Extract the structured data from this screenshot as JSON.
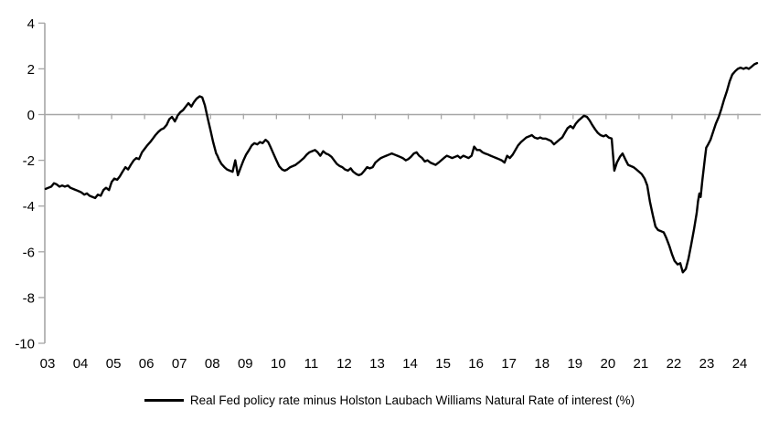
{
  "legend": {
    "label": "Real Fed policy rate minus Holston Laubach Williams Natural Rate of interest (%)"
  },
  "chart_data": {
    "type": "line",
    "title": "",
    "xlabel": "",
    "ylabel": "",
    "legend_position": "bottom",
    "grid": "zero-line-only",
    "ylim": [
      -10,
      4
    ],
    "xlim": [
      2003.0,
      2024.8
    ],
    "y_ticks": [
      4,
      2,
      0,
      -2,
      -4,
      -6,
      -8,
      -10
    ],
    "x_tick_years": [
      2003,
      2004,
      2005,
      2006,
      2007,
      2008,
      2009,
      2010,
      2011,
      2012,
      2013,
      2014,
      2015,
      2016,
      2017,
      2018,
      2019,
      2020,
      2021,
      2022,
      2023,
      2024
    ],
    "x_tick_labels": [
      "03",
      "04",
      "05",
      "06",
      "07",
      "08",
      "09",
      "10",
      "11",
      "12",
      "13",
      "14",
      "15",
      "16",
      "17",
      "18",
      "19",
      "20",
      "21",
      "22",
      "23",
      "24"
    ],
    "colors": {
      "line": "#000000",
      "axis": "#a6a6a6",
      "text": "#000000",
      "background": "#ffffff"
    },
    "series": [
      {
        "name": "Real Fed policy rate minus Holston Laubach Williams Natural Rate of interest (%)",
        "points": [
          [
            2003.0,
            -3.25
          ],
          [
            2003.08,
            -3.2
          ],
          [
            2003.17,
            -3.15
          ],
          [
            2003.25,
            -3.0
          ],
          [
            2003.33,
            -3.05
          ],
          [
            2003.42,
            -3.15
          ],
          [
            2003.5,
            -3.1
          ],
          [
            2003.58,
            -3.15
          ],
          [
            2003.67,
            -3.1
          ],
          [
            2003.75,
            -3.2
          ],
          [
            2003.83,
            -3.25
          ],
          [
            2003.92,
            -3.3
          ],
          [
            2004.0,
            -3.35
          ],
          [
            2004.08,
            -3.4
          ],
          [
            2004.17,
            -3.5
          ],
          [
            2004.25,
            -3.45
          ],
          [
            2004.33,
            -3.55
          ],
          [
            2004.42,
            -3.6
          ],
          [
            2004.5,
            -3.65
          ],
          [
            2004.58,
            -3.5
          ],
          [
            2004.67,
            -3.55
          ],
          [
            2004.75,
            -3.3
          ],
          [
            2004.83,
            -3.2
          ],
          [
            2004.92,
            -3.3
          ],
          [
            2005.0,
            -2.95
          ],
          [
            2005.08,
            -2.8
          ],
          [
            2005.17,
            -2.85
          ],
          [
            2005.25,
            -2.7
          ],
          [
            2005.33,
            -2.5
          ],
          [
            2005.42,
            -2.3
          ],
          [
            2005.5,
            -2.4
          ],
          [
            2005.58,
            -2.2
          ],
          [
            2005.67,
            -2.0
          ],
          [
            2005.75,
            -1.9
          ],
          [
            2005.83,
            -1.95
          ],
          [
            2005.92,
            -1.65
          ],
          [
            2006.0,
            -1.5
          ],
          [
            2006.08,
            -1.35
          ],
          [
            2006.17,
            -1.2
          ],
          [
            2006.25,
            -1.05
          ],
          [
            2006.33,
            -0.9
          ],
          [
            2006.42,
            -0.75
          ],
          [
            2006.5,
            -0.65
          ],
          [
            2006.58,
            -0.6
          ],
          [
            2006.67,
            -0.45
          ],
          [
            2006.75,
            -0.2
          ],
          [
            2006.83,
            -0.1
          ],
          [
            2006.92,
            -0.3
          ],
          [
            2007.0,
            -0.05
          ],
          [
            2007.08,
            0.1
          ],
          [
            2007.17,
            0.2
          ],
          [
            2007.25,
            0.35
          ],
          [
            2007.33,
            0.5
          ],
          [
            2007.42,
            0.35
          ],
          [
            2007.5,
            0.55
          ],
          [
            2007.58,
            0.7
          ],
          [
            2007.67,
            0.8
          ],
          [
            2007.75,
            0.75
          ],
          [
            2007.83,
            0.4
          ],
          [
            2007.92,
            -0.2
          ],
          [
            2008.0,
            -0.7
          ],
          [
            2008.08,
            -1.2
          ],
          [
            2008.17,
            -1.7
          ],
          [
            2008.21,
            -1.8
          ],
          [
            2008.25,
            -1.95
          ],
          [
            2008.33,
            -2.15
          ],
          [
            2008.42,
            -2.3
          ],
          [
            2008.5,
            -2.4
          ],
          [
            2008.58,
            -2.45
          ],
          [
            2008.67,
            -2.5
          ],
          [
            2008.75,
            -2.0
          ],
          [
            2008.83,
            -2.65
          ],
          [
            2008.92,
            -2.3
          ],
          [
            2009.0,
            -2.0
          ],
          [
            2009.08,
            -1.75
          ],
          [
            2009.17,
            -1.55
          ],
          [
            2009.25,
            -1.35
          ],
          [
            2009.33,
            -1.25
          ],
          [
            2009.42,
            -1.3
          ],
          [
            2009.5,
            -1.2
          ],
          [
            2009.58,
            -1.25
          ],
          [
            2009.67,
            -1.1
          ],
          [
            2009.75,
            -1.2
          ],
          [
            2009.83,
            -1.45
          ],
          [
            2009.92,
            -1.75
          ],
          [
            2010.0,
            -2.0
          ],
          [
            2010.08,
            -2.25
          ],
          [
            2010.17,
            -2.4
          ],
          [
            2010.25,
            -2.45
          ],
          [
            2010.33,
            -2.4
          ],
          [
            2010.42,
            -2.3
          ],
          [
            2010.5,
            -2.25
          ],
          [
            2010.58,
            -2.2
          ],
          [
            2010.67,
            -2.1
          ],
          [
            2010.75,
            -2.0
          ],
          [
            2010.83,
            -1.9
          ],
          [
            2010.92,
            -1.75
          ],
          [
            2011.0,
            -1.65
          ],
          [
            2011.08,
            -1.6
          ],
          [
            2011.17,
            -1.55
          ],
          [
            2011.25,
            -1.65
          ],
          [
            2011.33,
            -1.8
          ],
          [
            2011.42,
            -1.6
          ],
          [
            2011.5,
            -1.7
          ],
          [
            2011.58,
            -1.75
          ],
          [
            2011.67,
            -1.85
          ],
          [
            2011.75,
            -2.0
          ],
          [
            2011.83,
            -2.15
          ],
          [
            2011.92,
            -2.25
          ],
          [
            2012.0,
            -2.3
          ],
          [
            2012.08,
            -2.4
          ],
          [
            2012.17,
            -2.45
          ],
          [
            2012.25,
            -2.35
          ],
          [
            2012.33,
            -2.5
          ],
          [
            2012.42,
            -2.6
          ],
          [
            2012.5,
            -2.65
          ],
          [
            2012.58,
            -2.6
          ],
          [
            2012.67,
            -2.45
          ],
          [
            2012.75,
            -2.3
          ],
          [
            2012.83,
            -2.35
          ],
          [
            2012.92,
            -2.3
          ],
          [
            2013.0,
            -2.1
          ],
          [
            2013.08,
            -2.0
          ],
          [
            2013.17,
            -1.9
          ],
          [
            2013.25,
            -1.85
          ],
          [
            2013.33,
            -1.8
          ],
          [
            2013.42,
            -1.75
          ],
          [
            2013.5,
            -1.7
          ],
          [
            2013.58,
            -1.75
          ],
          [
            2013.67,
            -1.8
          ],
          [
            2013.75,
            -1.85
          ],
          [
            2013.83,
            -1.9
          ],
          [
            2013.92,
            -2.0
          ],
          [
            2014.0,
            -1.95
          ],
          [
            2014.08,
            -1.85
          ],
          [
            2014.17,
            -1.7
          ],
          [
            2014.25,
            -1.65
          ],
          [
            2014.33,
            -1.8
          ],
          [
            2014.42,
            -1.9
          ],
          [
            2014.5,
            -2.05
          ],
          [
            2014.58,
            -2.0
          ],
          [
            2014.67,
            -2.1
          ],
          [
            2014.75,
            -2.15
          ],
          [
            2014.83,
            -2.2
          ],
          [
            2014.92,
            -2.1
          ],
          [
            2015.0,
            -2.0
          ],
          [
            2015.08,
            -1.9
          ],
          [
            2015.17,
            -1.8
          ],
          [
            2015.25,
            -1.85
          ],
          [
            2015.33,
            -1.9
          ],
          [
            2015.42,
            -1.85
          ],
          [
            2015.5,
            -1.8
          ],
          [
            2015.58,
            -1.9
          ],
          [
            2015.67,
            -1.8
          ],
          [
            2015.75,
            -1.85
          ],
          [
            2015.83,
            -1.9
          ],
          [
            2015.92,
            -1.8
          ],
          [
            2016.0,
            -1.4
          ],
          [
            2016.08,
            -1.55
          ],
          [
            2016.17,
            -1.55
          ],
          [
            2016.25,
            -1.65
          ],
          [
            2016.33,
            -1.7
          ],
          [
            2016.42,
            -1.75
          ],
          [
            2016.5,
            -1.8
          ],
          [
            2016.58,
            -1.85
          ],
          [
            2016.67,
            -1.9
          ],
          [
            2016.75,
            -1.95
          ],
          [
            2016.83,
            -2.0
          ],
          [
            2016.92,
            -2.1
          ],
          [
            2017.0,
            -1.8
          ],
          [
            2017.08,
            -1.9
          ],
          [
            2017.17,
            -1.75
          ],
          [
            2017.25,
            -1.55
          ],
          [
            2017.33,
            -1.35
          ],
          [
            2017.42,
            -1.2
          ],
          [
            2017.5,
            -1.1
          ],
          [
            2017.58,
            -1.0
          ],
          [
            2017.67,
            -0.95
          ],
          [
            2017.75,
            -0.9
          ],
          [
            2017.83,
            -1.0
          ],
          [
            2017.92,
            -1.05
          ],
          [
            2018.0,
            -1.0
          ],
          [
            2018.08,
            -1.05
          ],
          [
            2018.17,
            -1.05
          ],
          [
            2018.25,
            -1.1
          ],
          [
            2018.33,
            -1.15
          ],
          [
            2018.42,
            -1.3
          ],
          [
            2018.5,
            -1.2
          ],
          [
            2018.58,
            -1.1
          ],
          [
            2018.67,
            -1.0
          ],
          [
            2018.75,
            -0.8
          ],
          [
            2018.83,
            -0.6
          ],
          [
            2018.92,
            -0.5
          ],
          [
            2019.0,
            -0.6
          ],
          [
            2019.08,
            -0.4
          ],
          [
            2019.17,
            -0.25
          ],
          [
            2019.25,
            -0.15
          ],
          [
            2019.33,
            -0.05
          ],
          [
            2019.42,
            -0.1
          ],
          [
            2019.5,
            -0.25
          ],
          [
            2019.58,
            -0.45
          ],
          [
            2019.67,
            -0.65
          ],
          [
            2019.75,
            -0.8
          ],
          [
            2019.83,
            -0.9
          ],
          [
            2019.92,
            -0.95
          ],
          [
            2020.0,
            -0.9
          ],
          [
            2020.08,
            -1.0
          ],
          [
            2020.17,
            -1.05
          ],
          [
            2020.25,
            -2.45
          ],
          [
            2020.33,
            -2.1
          ],
          [
            2020.42,
            -1.85
          ],
          [
            2020.5,
            -1.7
          ],
          [
            2020.58,
            -1.95
          ],
          [
            2020.67,
            -2.2
          ],
          [
            2020.75,
            -2.25
          ],
          [
            2020.83,
            -2.3
          ],
          [
            2020.92,
            -2.4
          ],
          [
            2021.0,
            -2.5
          ],
          [
            2021.08,
            -2.6
          ],
          [
            2021.17,
            -2.8
          ],
          [
            2021.25,
            -3.1
          ],
          [
            2021.33,
            -3.8
          ],
          [
            2021.42,
            -4.4
          ],
          [
            2021.5,
            -4.9
          ],
          [
            2021.58,
            -5.05
          ],
          [
            2021.67,
            -5.1
          ],
          [
            2021.75,
            -5.15
          ],
          [
            2021.83,
            -5.4
          ],
          [
            2021.92,
            -5.75
          ],
          [
            2022.0,
            -6.1
          ],
          [
            2022.08,
            -6.4
          ],
          [
            2022.17,
            -6.55
          ],
          [
            2022.25,
            -6.5
          ],
          [
            2022.33,
            -6.9
          ],
          [
            2022.42,
            -6.75
          ],
          [
            2022.5,
            -6.3
          ],
          [
            2022.58,
            -5.7
          ],
          [
            2022.67,
            -5.0
          ],
          [
            2022.75,
            -4.3
          ],
          [
            2022.79,
            -3.8
          ],
          [
            2022.83,
            -3.45
          ],
          [
            2022.87,
            -3.6
          ],
          [
            2022.92,
            -2.9
          ],
          [
            2023.0,
            -1.9
          ],
          [
            2023.04,
            -1.45
          ],
          [
            2023.08,
            -1.35
          ],
          [
            2023.17,
            -1.1
          ],
          [
            2023.25,
            -0.75
          ],
          [
            2023.33,
            -0.4
          ],
          [
            2023.42,
            -0.1
          ],
          [
            2023.5,
            0.25
          ],
          [
            2023.58,
            0.65
          ],
          [
            2023.67,
            1.05
          ],
          [
            2023.75,
            1.45
          ],
          [
            2023.83,
            1.75
          ],
          [
            2023.92,
            1.9
          ],
          [
            2024.0,
            2.0
          ],
          [
            2024.08,
            2.05
          ],
          [
            2024.17,
            2.0
          ],
          [
            2024.25,
            2.05
          ],
          [
            2024.33,
            2.0
          ],
          [
            2024.42,
            2.1
          ],
          [
            2024.5,
            2.2
          ],
          [
            2024.58,
            2.25
          ]
        ]
      }
    ]
  }
}
